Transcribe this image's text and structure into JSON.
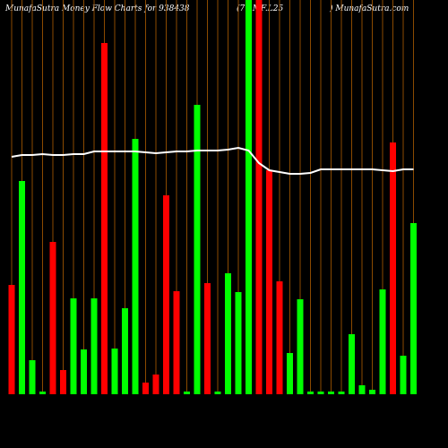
{
  "chart_data": {
    "type": "bar",
    "title": "MunafaSutra  Money Flow  Charts for 938438",
    "subtitle": "(77.MF.L25",
    "source": ") MunafaSutra.com",
    "ylim": [
      0,
      440
    ],
    "series": [
      {
        "type": "bar",
        "values": [
          122,
          238,
          38,
          3,
          170,
          27,
          107,
          50,
          107,
          392,
          51,
          96,
          285,
          13,
          22,
          222,
          115,
          3,
          323,
          124,
          3,
          135,
          114,
          440,
          440,
          250,
          126,
          46,
          106,
          3,
          3,
          3,
          3,
          67,
          10,
          5,
          117,
          281,
          43,
          191
        ],
        "colors": [
          "#ff0000",
          "#00ff00",
          "#00ff00",
          "#00ff00",
          "#ff0000",
          "#ff0000",
          "#00ff00",
          "#00ff00",
          "#00ff00",
          "#ff0000",
          "#00ff00",
          "#00ff00",
          "#00ff00",
          "#ff0000",
          "#ff0000",
          "#ff0000",
          "#ff0000",
          "#00ff00",
          "#00ff00",
          "#ff0000",
          "#00ff00",
          "#00ff00",
          "#00ff00",
          "#00ff00",
          "#ff0000",
          "#ff0000",
          "#ff0000",
          "#00ff00",
          "#00ff00",
          "#00ff00",
          "#00ff00",
          "#00ff00",
          "#00ff00",
          "#00ff00",
          "#00ff00",
          "#00ff00",
          "#00ff00",
          "#ff0000",
          "#00ff00",
          "#00ff00"
        ]
      },
      {
        "type": "line",
        "color": "#ffffff",
        "values": [
          265,
          267,
          267,
          268,
          267,
          267,
          268,
          268,
          271,
          271,
          271,
          271,
          271,
          270,
          269,
          270,
          271,
          271,
          272,
          272,
          272,
          273,
          275,
          272,
          258,
          250,
          248,
          246,
          246,
          247,
          251,
          251,
          251,
          251,
          251,
          251,
          250,
          249,
          251,
          251
        ]
      }
    ],
    "grid_color": "#8b4a00"
  }
}
